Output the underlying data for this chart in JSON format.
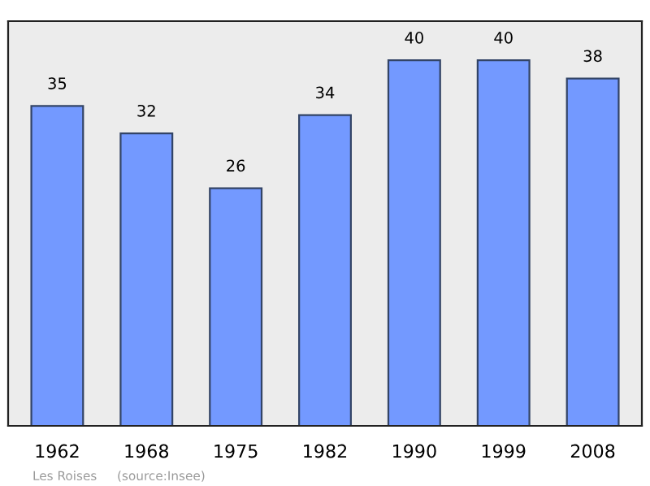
{
  "chart_data": {
    "type": "bar",
    "categories": [
      "1962",
      "1968",
      "1975",
      "1982",
      "1990",
      "1999",
      "2008"
    ],
    "values": [
      35,
      32,
      26,
      34,
      40,
      40,
      38
    ],
    "color": "#7399ff",
    "data_labels": true,
    "grid": false,
    "legend": false,
    "annotations": [
      "Les Roises",
      "(source:Insee)"
    ]
  }
}
